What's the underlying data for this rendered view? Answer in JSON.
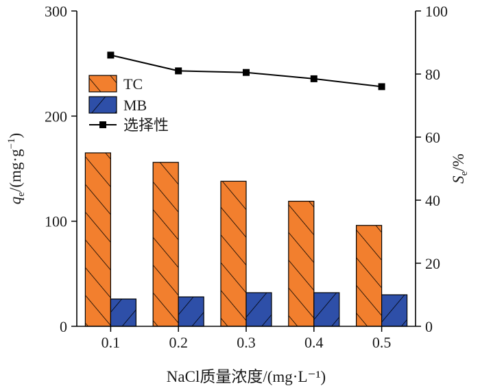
{
  "chart_data": {
    "type": "bar",
    "categories": [
      "0.1",
      "0.2",
      "0.3",
      "0.4",
      "0.5"
    ],
    "series": [
      {
        "name": "TC",
        "axis": "left",
        "values": [
          165,
          156,
          138,
          119,
          96
        ],
        "color": "#F27F2E",
        "hatch": "forward"
      },
      {
        "name": "MB",
        "axis": "left",
        "values": [
          26,
          28,
          32,
          32,
          30
        ],
        "color": "#2E4FA8",
        "hatch": "backward"
      },
      {
        "name": "选择性",
        "axis": "right",
        "type": "line",
        "values": [
          86,
          81,
          80.5,
          78.5,
          76
        ],
        "color": "#000000",
        "marker": "square"
      }
    ],
    "xlabel": "NaCl质量浓度/(mg·L⁻¹)",
    "ylabel": {
      "main": "q",
      "sub": "e",
      "rest": "/(mg·g",
      "sup": "−1",
      "close": ")"
    },
    "y2label": {
      "main": "S",
      "sub": "e",
      "rest": "/%"
    },
    "ylim": [
      0,
      300
    ],
    "yticks": [
      "0",
      "100",
      "200",
      "300"
    ],
    "y2lim": [
      0,
      100
    ],
    "y2ticks": [
      "0",
      "20",
      "40",
      "60",
      "80",
      "100"
    ],
    "legend": {
      "position": "top-left",
      "entries": [
        "TC",
        "MB",
        "选择性"
      ]
    },
    "grid": false
  }
}
